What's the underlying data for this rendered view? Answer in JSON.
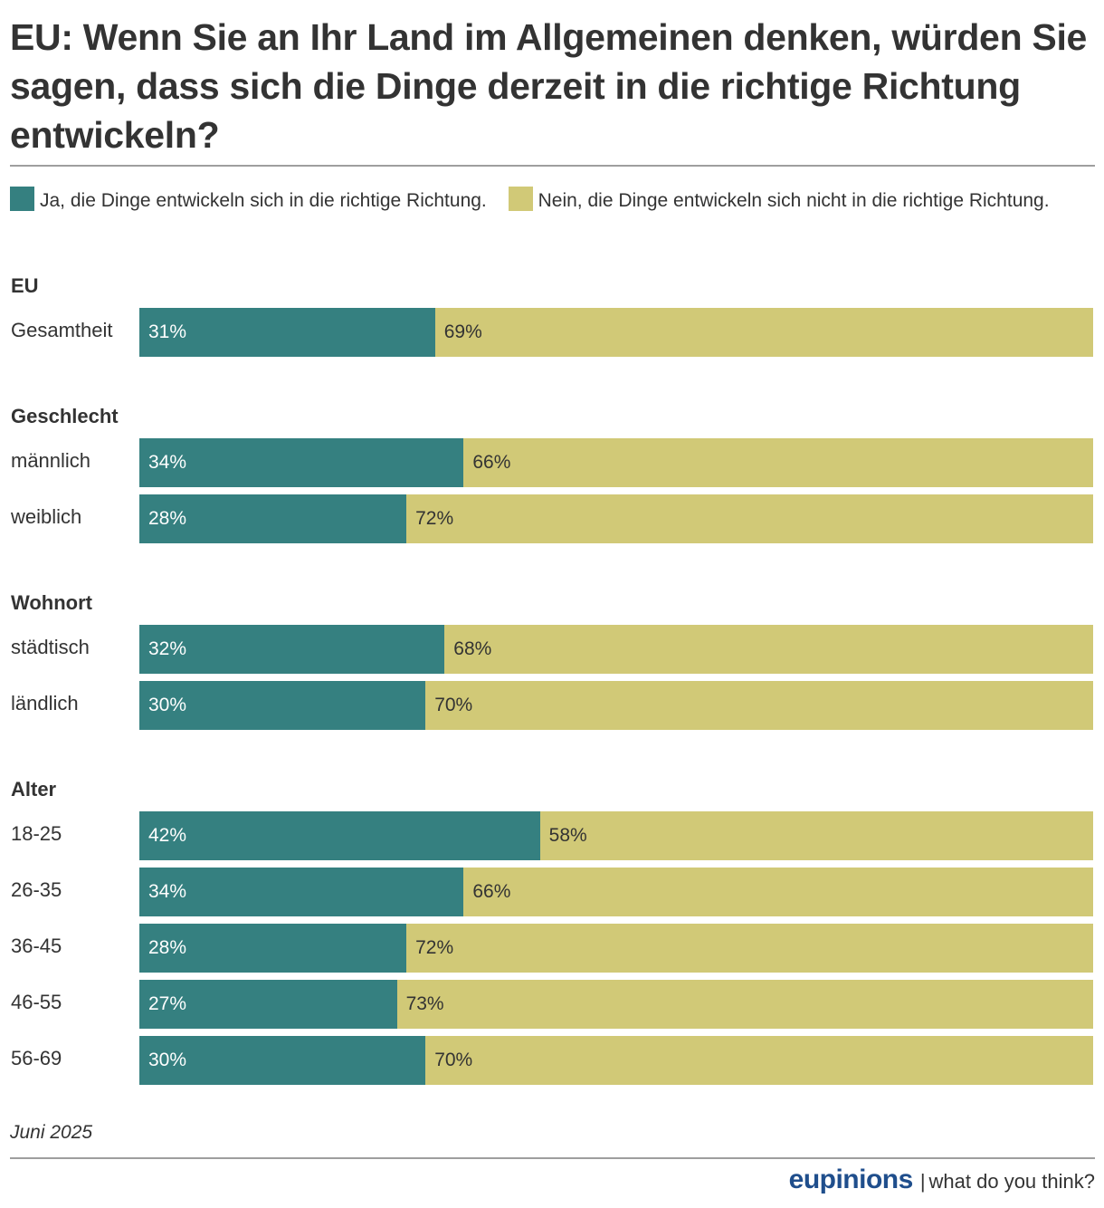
{
  "title": "EU: Wenn Sie an Ihr Land im Allgemeinen denken, würden Sie sagen, dass sich die Dinge derzeit in die richtige Richtung entwickeln?",
  "legend": {
    "yes": "Ja, die Dinge entwickeln sich in die richtige Richtung.",
    "no": "Nein, die Dinge entwickeln sich nicht in die richtige Richtung."
  },
  "colors": {
    "yes": "#358080",
    "no": "#d1c977",
    "text": "#333333",
    "brand": "#1f4e8c"
  },
  "chart_data": {
    "type": "bar",
    "orientation": "horizontal",
    "stacked": true,
    "percent": true,
    "xlim": [
      0,
      100
    ],
    "legend_position": "top",
    "grid": false,
    "series": [
      {
        "name": "Ja, die Dinge entwickeln sich in die richtige Richtung.",
        "color": "#358080"
      },
      {
        "name": "Nein, die Dinge entwickeln sich nicht in die richtige Richtung.",
        "color": "#d1c977"
      }
    ],
    "groups": [
      {
        "name": "EU",
        "rows": [
          {
            "label": "Gesamtheit",
            "values": [
              31,
              69
            ]
          }
        ]
      },
      {
        "name": "Geschlecht",
        "rows": [
          {
            "label": "männlich",
            "values": [
              34,
              66
            ]
          },
          {
            "label": "weiblich",
            "values": [
              28,
              72
            ]
          }
        ]
      },
      {
        "name": "Wohnort",
        "rows": [
          {
            "label": "städtisch",
            "values": [
              32,
              68
            ]
          },
          {
            "label": "ländlich",
            "values": [
              30,
              70
            ]
          }
        ]
      },
      {
        "name": "Alter",
        "rows": [
          {
            "label": "18-25",
            "values": [
              42,
              58
            ]
          },
          {
            "label": "26-35",
            "values": [
              34,
              66
            ]
          },
          {
            "label": "36-45",
            "values": [
              28,
              72
            ]
          },
          {
            "label": "46-55",
            "values": [
              27,
              73
            ]
          },
          {
            "label": "56-69",
            "values": [
              30,
              70
            ]
          }
        ]
      }
    ]
  },
  "footnote": "Juni 2025",
  "brand": {
    "name": "eupinions",
    "separator": "|",
    "tagline": "what do you think?"
  }
}
